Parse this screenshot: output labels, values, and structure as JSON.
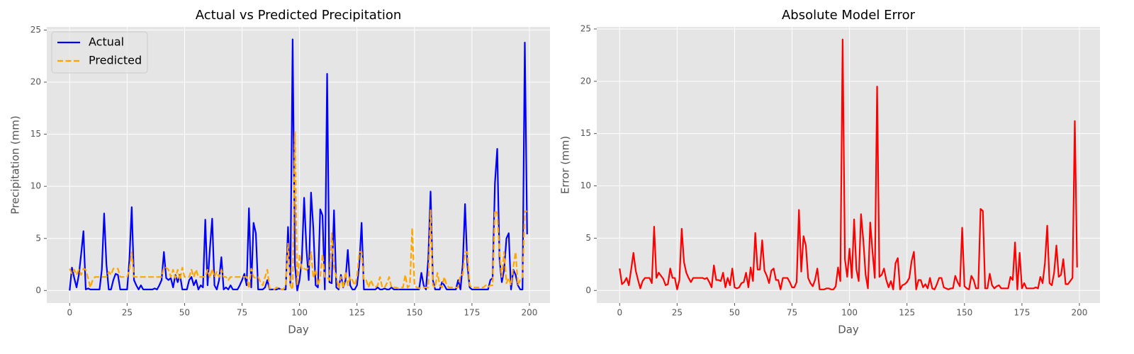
{
  "chart_data": [
    {
      "type": "line",
      "title": "Actual vs Predicted Precipitation",
      "xlabel": "Day",
      "ylabel": "Precipitation (mm)",
      "x": [
        0,
        1,
        2,
        3,
        4,
        5,
        6,
        7,
        8,
        9,
        10,
        11,
        12,
        13,
        14,
        15,
        16,
        17,
        18,
        19,
        20,
        21,
        22,
        23,
        24,
        25,
        26,
        27,
        28,
        29,
        30,
        31,
        32,
        33,
        34,
        35,
        36,
        37,
        38,
        39,
        40,
        41,
        42,
        43,
        44,
        45,
        46,
        47,
        48,
        49,
        50,
        51,
        52,
        53,
        54,
        55,
        56,
        57,
        58,
        59,
        60,
        61,
        62,
        63,
        64,
        65,
        66,
        67,
        68,
        69,
        70,
        71,
        72,
        73,
        74,
        75,
        76,
        77,
        78,
        79,
        80,
        81,
        82,
        83,
        84,
        85,
        86,
        87,
        88,
        89,
        90,
        91,
        92,
        93,
        94,
        95,
        96,
        97,
        98,
        99,
        100,
        101,
        102,
        103,
        104,
        105,
        106,
        107,
        108,
        109,
        110,
        111,
        112,
        113,
        114,
        115,
        116,
        117,
        118,
        119,
        120,
        121,
        122,
        123,
        124,
        125,
        126,
        127,
        128,
        129,
        130,
        131,
        132,
        133,
        134,
        135,
        136,
        137,
        138,
        139,
        140,
        141,
        142,
        143,
        144,
        145,
        146,
        147,
        148,
        149,
        150,
        151,
        152,
        153,
        154,
        155,
        156,
        157,
        158,
        159,
        160,
        161,
        162,
        163,
        164,
        165,
        166,
        167,
        168,
        169,
        170,
        171,
        172,
        173,
        174,
        175,
        176,
        177,
        178,
        179,
        180,
        181,
        182,
        183,
        184,
        185,
        186,
        187,
        188,
        189,
        190,
        191,
        192,
        193,
        194,
        195,
        196,
        197,
        198,
        199
      ],
      "series": [
        {
          "name": "Actual",
          "color": "#0000ff",
          "linestyle": "solid",
          "values": [
            0,
            2.2,
            1.2,
            0.3,
            1.5,
            3.5,
            5.7,
            0.1,
            0.2,
            0.1,
            0.1,
            0.1,
            0.1,
            0.1,
            2,
            7.4,
            2.5,
            0.1,
            0.1,
            1,
            1.6,
            1.5,
            0.1,
            0.1,
            0.1,
            0.1,
            3,
            8,
            1,
            0.5,
            0.1,
            0.5,
            0.1,
            0.1,
            0.1,
            0.1,
            0.1,
            0.2,
            0.1,
            0.5,
            1,
            3.7,
            1.2,
            1,
            1.2,
            0.3,
            1.5,
            0.8,
            1.5,
            0.1,
            0.1,
            0.1,
            1,
            1.3,
            0.5,
            1,
            0.1,
            0.5,
            0.3,
            6.8,
            0.5,
            4,
            6.9,
            0.5,
            0.1,
            1,
            3.2,
            0.1,
            0.3,
            0.1,
            0.5,
            0.1,
            0.1,
            0.1,
            0.5,
            1,
            1.6,
            0.5,
            7.9,
            0.3,
            6.5,
            5.5,
            0.1,
            0.1,
            0.1,
            0.3,
            1,
            0.1,
            0.1,
            0.1,
            0.1,
            0.2,
            0.1,
            0.1,
            0.1,
            6.1,
            0.5,
            24.1,
            2.5,
            0,
            1,
            3,
            8.9,
            4,
            1,
            9.4,
            6,
            0.5,
            0.3,
            7.8,
            7.2,
            0.1,
            20.8,
            0.8,
            0.7,
            7.7,
            0.3,
            0.1,
            1.5,
            0.3,
            1,
            3.9,
            0.5,
            0.1,
            0.1,
            0.5,
            2.5,
            6.5,
            0.1,
            0.1,
            0.1,
            0.1,
            0.1,
            0.1,
            0.3,
            0.1,
            0.1,
            0.2,
            0.1,
            0.1,
            0.3,
            0.1,
            0.1,
            0.1,
            0.1,
            0.1,
            0.1,
            0.1,
            0.1,
            0.1,
            0.1,
            0.1,
            0.1,
            1.7,
            0.5,
            0.1,
            3,
            9.5,
            1,
            0.1,
            0.1,
            0.1,
            0.8,
            0.5,
            0.1,
            0.1,
            0.1,
            0.1,
            0.1,
            1,
            0.1,
            2.5,
            8.3,
            2.5,
            0.3,
            0.1,
            0.1,
            0.1,
            0.1,
            0.1,
            0.1,
            0.1,
            0.1,
            1,
            1.2,
            10.3,
            13.6,
            3,
            0.8,
            2,
            5,
            5.5,
            0.1,
            2,
            1.5,
            0.5,
            0.1,
            0.1,
            23.8,
            5.4
          ]
        },
        {
          "name": "Predicted",
          "color": "#ffa500",
          "linestyle": "dashed",
          "values": [
            2.1,
            1.6,
            2,
            1.5,
            2,
            1.5,
            2.1,
            2,
            1.2,
            0.3,
            1,
            1.3,
            1.3,
            1.3,
            1.3,
            1.3,
            1.3,
            1.8,
            1.5,
            2.1,
            2.1,
            2.1,
            1.3,
            1.3,
            1.3,
            1.3,
            2,
            3.7,
            1.3,
            1.3,
            1.3,
            1.3,
            1.3,
            1.3,
            1.3,
            1.3,
            1.3,
            1.3,
            1.3,
            1.3,
            1.3,
            2.2,
            2.2,
            2,
            1.3,
            2,
            1.2,
            2,
            1,
            2.2,
            1.3,
            1.3,
            1.3,
            2,
            1.3,
            2,
            1.3,
            1.3,
            1.3,
            1.3,
            2,
            1.2,
            2.1,
            1.3,
            1.8,
            1.3,
            2,
            1.3,
            1.3,
            1,
            1.3,
            1.3,
            1.3,
            1.3,
            1.3,
            1.3,
            1.3,
            1.3,
            0.2,
            2.1,
            1.3,
            1.2,
            1.3,
            0.8,
            0.5,
            1.3,
            2,
            0.2,
            0.2,
            0.1,
            0.3,
            0.2,
            0.1,
            0.1,
            0.5,
            4.5,
            0.5,
            0.1,
            15.2,
            0.5,
            3.5,
            2,
            2.1,
            2,
            2.2,
            3.7,
            1.2,
            2,
            0.5,
            1.3,
            3.5,
            1.3,
            1.3,
            1,
            5.5,
            2.2,
            1.3,
            0.2,
            1.3,
            0.2,
            1.8,
            0.5,
            1.3,
            1,
            0.5,
            1.3,
            3.7,
            3.7,
            1,
            1,
            0.3,
            1,
            0.5,
            0.3,
            0.5,
            1.3,
            0.3,
            0.3,
            0.7,
            1.3,
            0.3,
            0.3,
            0.3,
            0.2,
            0.3,
            0.3,
            1.5,
            0.3,
            0.5,
            6,
            0.5,
            0.3,
            0.2,
            0.3,
            0.3,
            0.3,
            0.3,
            7.7,
            0.5,
            0.3,
            1.7,
            0.5,
            0.3,
            1.3,
            0.5,
            0.3,
            0.3,
            0.3,
            0.3,
            0.3,
            1.5,
            1.5,
            3.7,
            3.7,
            0.5,
            0.3,
            0.3,
            0.3,
            0.3,
            0.3,
            0.3,
            0.5,
            0.3,
            0.5,
            0.5,
            7.7,
            7.4,
            3.7,
            1.3,
            3.7,
            0.7,
            1.2,
            0.5,
            2.3,
            3.7,
            0.5,
            1,
            1.3,
            7.6,
            7.6
          ]
        }
      ],
      "xlim": [
        -9.95,
        208.95
      ],
      "ylim": [
        -1.2,
        25.3
      ],
      "xticks": [
        0,
        25,
        50,
        75,
        100,
        125,
        150,
        175,
        200
      ],
      "yticks": [
        0,
        5,
        10,
        15,
        20,
        25
      ],
      "grid": true,
      "legend": "upper left"
    },
    {
      "type": "line",
      "title": "Absolute Model Error",
      "xlabel": "Day",
      "ylabel": "Error (mm)",
      "x": [
        0,
        1,
        2,
        3,
        4,
        5,
        6,
        7,
        8,
        9,
        10,
        11,
        12,
        13,
        14,
        15,
        16,
        17,
        18,
        19,
        20,
        21,
        22,
        23,
        24,
        25,
        26,
        27,
        28,
        29,
        30,
        31,
        32,
        33,
        34,
        35,
        36,
        37,
        38,
        39,
        40,
        41,
        42,
        43,
        44,
        45,
        46,
        47,
        48,
        49,
        50,
        51,
        52,
        53,
        54,
        55,
        56,
        57,
        58,
        59,
        60,
        61,
        62,
        63,
        64,
        65,
        66,
        67,
        68,
        69,
        70,
        71,
        72,
        73,
        74,
        75,
        76,
        77,
        78,
        79,
        80,
        81,
        82,
        83,
        84,
        85,
        86,
        87,
        88,
        89,
        90,
        91,
        92,
        93,
        94,
        95,
        96,
        97,
        98,
        99,
        100,
        101,
        102,
        103,
        104,
        105,
        106,
        107,
        108,
        109,
        110,
        111,
        112,
        113,
        114,
        115,
        116,
        117,
        118,
        119,
        120,
        121,
        122,
        123,
        124,
        125,
        126,
        127,
        128,
        129,
        130,
        131,
        132,
        133,
        134,
        135,
        136,
        137,
        138,
        139,
        140,
        141,
        142,
        143,
        144,
        145,
        146,
        147,
        148,
        149,
        150,
        151,
        152,
        153,
        154,
        155,
        156,
        157,
        158,
        159,
        160,
        161,
        162,
        163,
        164,
        165,
        166,
        167,
        168,
        169,
        170,
        171,
        172,
        173,
        174,
        175,
        176,
        177,
        178,
        179,
        180,
        181,
        182,
        183,
        184,
        185,
        186,
        187,
        188,
        189,
        190,
        191,
        192,
        193,
        194,
        195,
        196,
        197,
        198,
        199
      ],
      "series": [
        {
          "color": "#ff0000",
          "linestyle": "solid",
          "values": [
            2.1,
            0.6,
            0.8,
            1.2,
            0.5,
            2,
            3.6,
            1.9,
            1,
            0.2,
            0.9,
            1.2,
            1.2,
            1.2,
            0.7,
            6.1,
            1.2,
            1.7,
            1.4,
            1.1,
            0.5,
            0.6,
            2.1,
            1.2,
            1.2,
            0.1,
            1,
            5.9,
            2.7,
            1.7,
            1.2,
            0.8,
            1.2,
            1.2,
            1.2,
            1.2,
            1.2,
            1.1,
            1.2,
            0.8,
            0.3,
            2.4,
            1,
            1,
            0.9,
            1.7,
            0.3,
            1.2,
            0.5,
            2.1,
            0.3,
            0.2,
            0.3,
            0.7,
            0.8,
            1.7,
            0.3,
            2.2,
            0.9,
            5.5,
            2,
            2,
            4.8,
            1.9,
            1.4,
            0.7,
            1.9,
            2.1,
            1,
            1,
            0.1,
            1.2,
            1.2,
            1.2,
            0.8,
            0.3,
            0.3,
            0.8,
            7.7,
            1.8,
            5.2,
            4.3,
            1.2,
            0.7,
            0.4,
            1,
            2.1,
            0.1,
            0.1,
            0.1,
            0.2,
            0.2,
            0.1,
            0.1,
            0.4,
            2.2,
            0.9,
            24,
            3,
            1.3,
            4,
            1.2,
            6.8,
            2,
            0.9,
            7.3,
            4.8,
            1.5,
            0.2,
            6.5,
            3.7,
            1.2,
            19.5,
            1.3,
            1.5,
            2.1,
            1,
            0.3,
            0.9,
            0.1,
            2.6,
            3.1,
            0.1,
            0.5,
            0.6,
            0.8,
            1.2,
            2.8,
            3.7,
            0.1,
            1,
            1,
            0.3,
            0.6,
            0.2,
            1.2,
            0.2,
            0.1,
            0.6,
            1.2,
            1.2,
            0.3,
            0.2,
            0.1,
            0.2,
            0.2,
            1.4,
            0.8,
            0.4,
            6,
            0.4,
            0.2,
            0.1,
            1.4,
            1,
            0.2,
            0.2,
            7.8,
            7.6,
            0.2,
            0.2,
            1.6,
            0.5,
            0.2,
            0.4,
            0.5,
            0.2,
            0.2,
            0.2,
            0.2,
            1.3,
            1,
            4.6,
            0.1,
            3.6,
            0.2,
            0.7,
            0.2,
            0.2,
            0.2,
            0.2,
            0.3,
            0.2,
            1.3,
            0.7,
            2.6,
            6.2,
            0.7,
            0.5,
            1.7,
            4.3,
            1.3,
            1.5,
            3,
            0.6,
            0.6,
            0.9,
            1.2,
            16.2,
            2.2
          ]
        }
      ],
      "xlim": [
        -9.95,
        208.95
      ],
      "ylim": [
        -1.2,
        25.2
      ],
      "xticks": [
        0,
        25,
        50,
        75,
        100,
        125,
        150,
        175,
        200
      ],
      "yticks": [
        0,
        5,
        10,
        15,
        20,
        25
      ],
      "grid": true
    }
  ]
}
